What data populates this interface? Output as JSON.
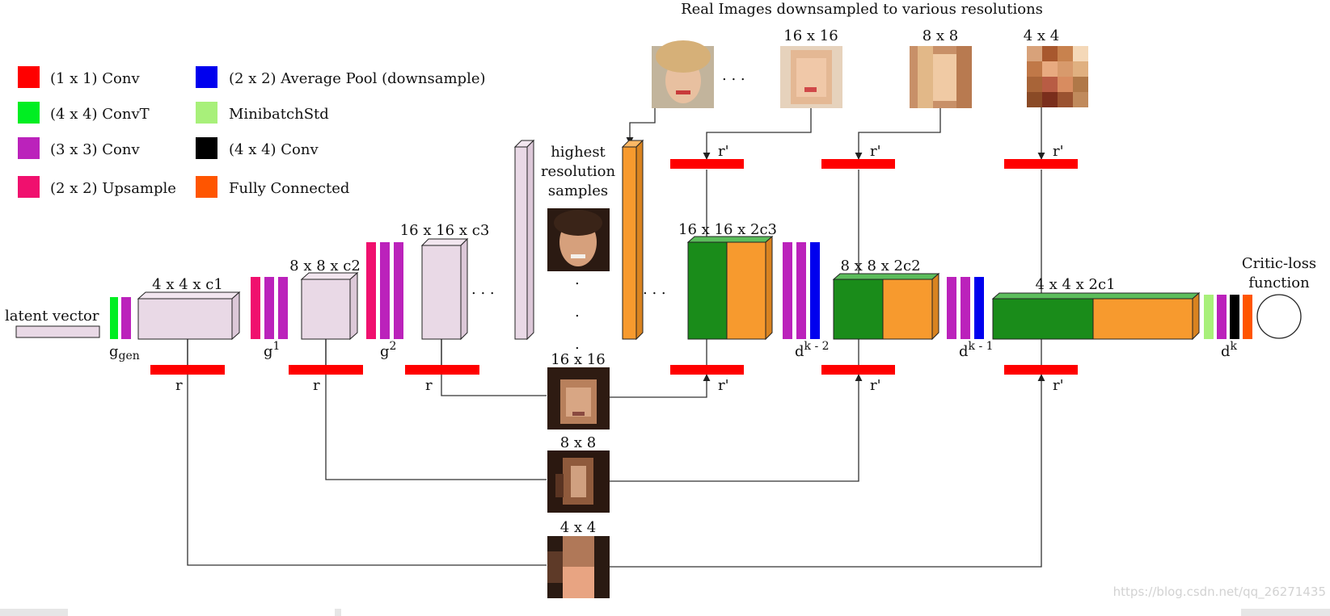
{
  "title": "Real Images downsampled to various resolutions",
  "legend": [
    {
      "id": "conv1x1",
      "label": "(1 x 1) Conv",
      "color": "#ff0000"
    },
    {
      "id": "convt4x4",
      "label": "(4 x 4) ConvT",
      "color": "#00ee22"
    },
    {
      "id": "conv3x3",
      "label": "(3 x 3) Conv",
      "color": "#bb22bb"
    },
    {
      "id": "upsample",
      "label": "(2 x 2) Upsample",
      "color": "#f0106e"
    },
    {
      "id": "avgpool",
      "label": "(2 x 2) Average Pool (downsample)",
      "color": "#0000ee"
    },
    {
      "id": "minibatch",
      "label": "MinibatchStd",
      "color": "#a8f07a"
    },
    {
      "id": "conv4x4",
      "label": "(4 x 4) Conv",
      "color": "#000000"
    },
    {
      "id": "fc",
      "label": "Fully Connected",
      "color": "#ff5500"
    }
  ],
  "generator": {
    "latent_label": "latent vector",
    "stage_labels": [
      "4 x 4 x c1",
      "8 x 8 x c2",
      "16 x 16 x c3"
    ],
    "block_labels": {
      "g_main": "g",
      "g_sub": "gen",
      "g1_sup": "1",
      "g2_sup": "2"
    },
    "r_label": "r",
    "ellipsis": ". . ."
  },
  "middle": {
    "highest_label": [
      "highest",
      "resolution",
      "samples"
    ],
    "sample_labels": [
      "16 x 16",
      "8 x 8",
      "4 x 4"
    ],
    "vdots": ".",
    "ellipsis": ". . ."
  },
  "real_images": {
    "labels": [
      "16 x 16",
      "8 x 8",
      "4 x 4"
    ],
    "ellipsis": ". . ."
  },
  "discriminator": {
    "stage_labels": [
      "16 x 16 x 2c3",
      "8 x 8 x 2c2",
      "4 x 4 x 2c1"
    ],
    "block_labels": {
      "d_main": "d",
      "dk2_sup": "k - 2",
      "dk1_sup": "k - 1",
      "dk_sup": "k"
    },
    "rprime_label": "r'",
    "critic_label": [
      "Critic-loss",
      "function"
    ]
  },
  "colors": {
    "green": "#1a8c1a",
    "orange": "#f79a2e",
    "pale": "#e9d9e6",
    "red": "#ff0000"
  },
  "watermark": "https://blog.csdn.net/qq_26271435"
}
